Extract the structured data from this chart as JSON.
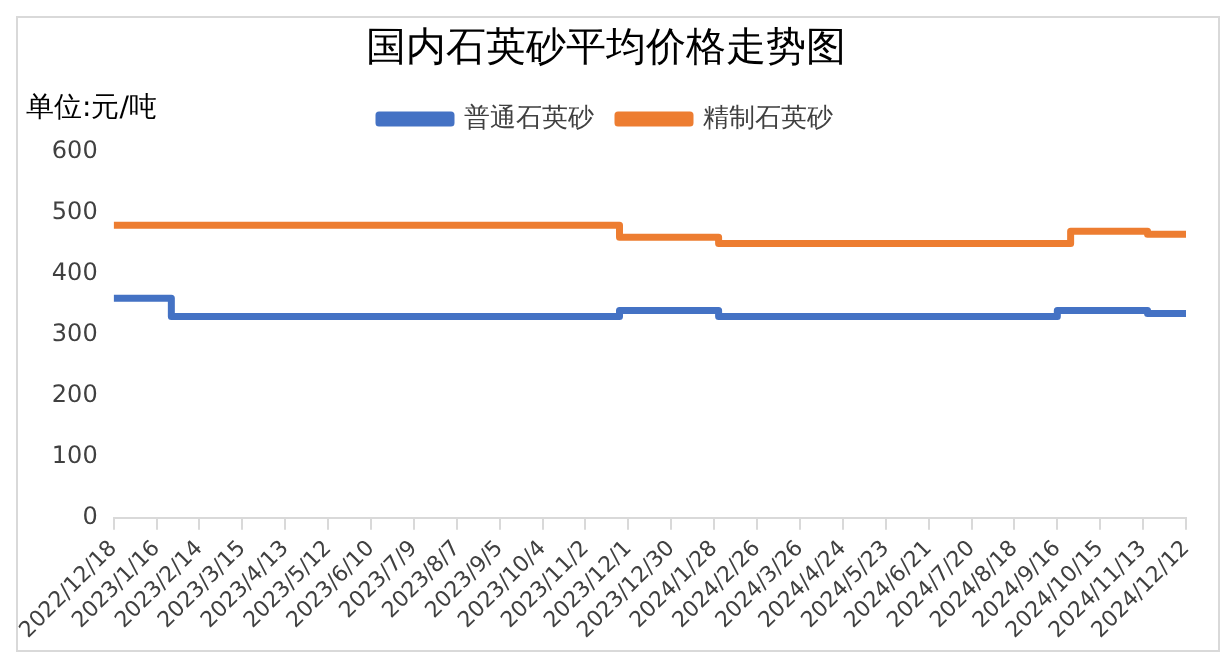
{
  "chart_data": {
    "type": "step",
    "title": "国内石英砂平均价格走势图",
    "ylabel": "单位:元/吨",
    "series": [
      {
        "name": "普通石英砂",
        "color": "#4472c4",
        "x": [
          "2022-12-18",
          "2023-01-26",
          "2023-11-25",
          "2024-01-31",
          "2024-09-16",
          "2024-11-16",
          "2024-12-12"
        ],
        "values": [
          360,
          330,
          340,
          330,
          340,
          335,
          335
        ]
      },
      {
        "name": "精制石英砂",
        "color": "#ed7d31",
        "x": [
          "2022-12-18",
          "2023-11-25",
          "2024-01-31",
          "2024-09-25",
          "2024-11-16",
          "2024-12-12"
        ],
        "values": [
          480,
          460,
          450,
          470,
          465,
          465
        ]
      }
    ],
    "xlim": [
      "2022-12-18",
      "2024-12-12"
    ],
    "xticks": [
      {
        "value": "2022-12-18",
        "label": "2022/12/18"
      },
      {
        "value": "2023-01-16",
        "label": "2023/1/16"
      },
      {
        "value": "2023-02-14",
        "label": "2023/2/14"
      },
      {
        "value": "2023-03-15",
        "label": "2023/3/15"
      },
      {
        "value": "2023-04-13",
        "label": "2023/4/13"
      },
      {
        "value": "2023-05-12",
        "label": "2023/5/12"
      },
      {
        "value": "2023-06-10",
        "label": "2023/6/10"
      },
      {
        "value": "2023-07-09",
        "label": "2023/7/9"
      },
      {
        "value": "2023-08-07",
        "label": "2023/8/7"
      },
      {
        "value": "2023-09-05",
        "label": "2023/9/5"
      },
      {
        "value": "2023-10-04",
        "label": "2023/10/4"
      },
      {
        "value": "2023-11-02",
        "label": "2023/11/2"
      },
      {
        "value": "2023-12-01",
        "label": "2023/12/1"
      },
      {
        "value": "2023-12-30",
        "label": "2023/12/30"
      },
      {
        "value": "2024-01-28",
        "label": "2024/1/28"
      },
      {
        "value": "2024-02-26",
        "label": "2024/2/26"
      },
      {
        "value": "2024-03-26",
        "label": "2024/3/26"
      },
      {
        "value": "2024-04-24",
        "label": "2024/4/24"
      },
      {
        "value": "2024-05-23",
        "label": "2024/5/23"
      },
      {
        "value": "2024-06-21",
        "label": "2024/6/21"
      },
      {
        "value": "2024-07-20",
        "label": "2024/7/20"
      },
      {
        "value": "2024-08-18",
        "label": "2024/8/18"
      },
      {
        "value": "2024-09-16",
        "label": "2024/9/16"
      },
      {
        "value": "2024-10-15",
        "label": "2024/10/15"
      },
      {
        "value": "2024-11-13",
        "label": "2024/11/13"
      },
      {
        "value": "2024-12-12",
        "label": "2024/12/12"
      }
    ],
    "ylim": [
      0,
      600
    ],
    "yticks": [
      0,
      100,
      200,
      300,
      400,
      500,
      600
    ],
    "grid": false,
    "legend": "top",
    "marker": "none",
    "line_style": "solid"
  }
}
